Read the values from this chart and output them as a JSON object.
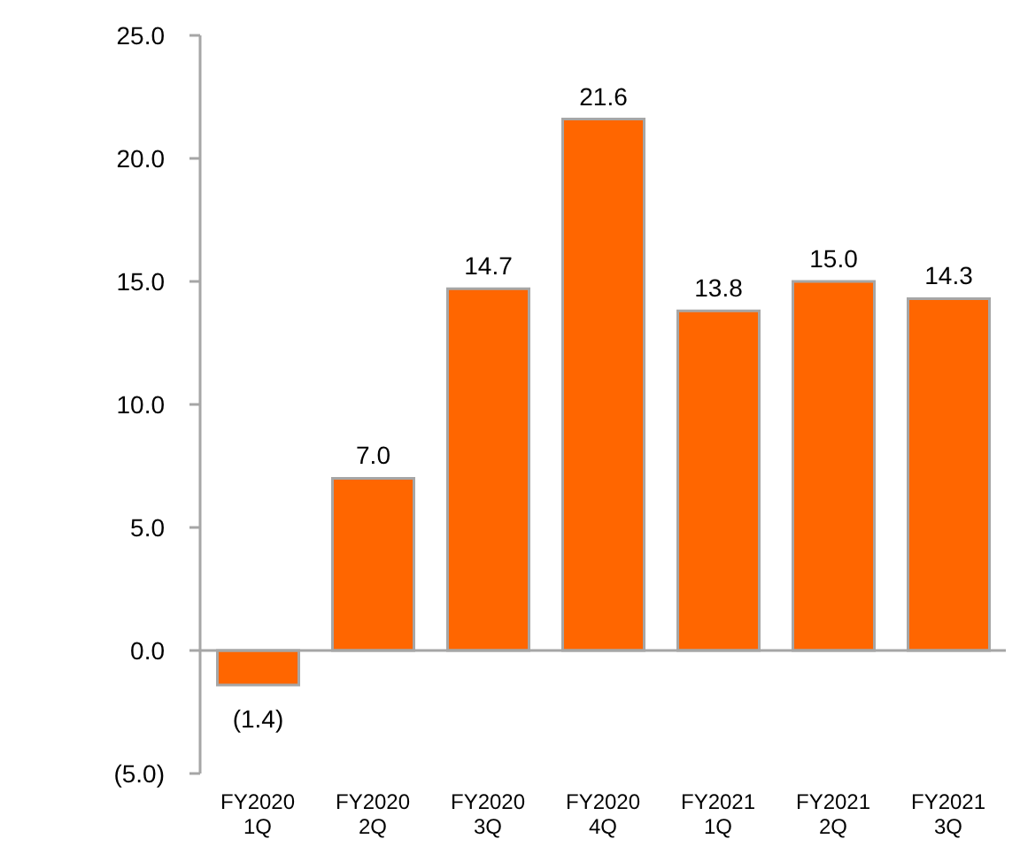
{
  "chart_data": {
    "type": "bar",
    "categories": [
      "FY2020 1Q",
      "FY2020 2Q",
      "FY2020 3Q",
      "FY2020 4Q",
      "FY2021 1Q",
      "FY2021 2Q",
      "FY2021 3Q"
    ],
    "values": [
      -1.4,
      7.0,
      14.7,
      21.6,
      13.8,
      15.0,
      14.3
    ],
    "value_labels": [
      "(1.4)",
      "7.0",
      "14.7",
      "21.6",
      "13.8",
      "15.0",
      "14.3"
    ],
    "color": "#ff6600",
    "ylim": [
      -5,
      25
    ],
    "yticks": [
      {
        "value": -5,
        "label": "(5.0)"
      },
      {
        "value": 0,
        "label": "0.0"
      },
      {
        "value": 5,
        "label": "5.0"
      },
      {
        "value": 10,
        "label": "10.0"
      },
      {
        "value": 15,
        "label": "15.0"
      },
      {
        "value": 20,
        "label": "20.0"
      },
      {
        "value": 25,
        "label": "25.0"
      }
    ],
    "legend": false
  }
}
